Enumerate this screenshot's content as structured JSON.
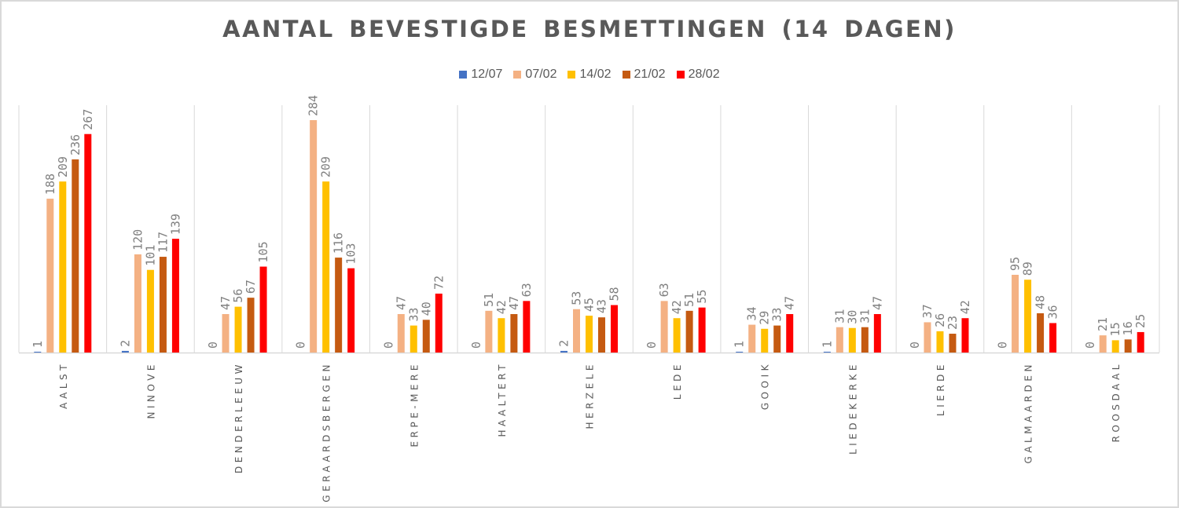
{
  "chart_data": {
    "type": "bar",
    "title": "AANTAL BEVESTIGDE BESMETTINGEN (14 DAGEN)",
    "xlabel": "",
    "ylabel": "",
    "ylim": [
      0,
      300
    ],
    "grid": "vertical category separators",
    "legend_position": "top",
    "categories": [
      "AALST",
      "NINOVE",
      "DENDERLEEUW",
      "GERAARDSBERGEN",
      "ERPE-MERE",
      "HAALTERT",
      "HERZELE",
      "LEDE",
      "GOOIK",
      "LIEDEKERKE",
      "LIERDE",
      "GALMAARDEN",
      "ROOSDAAL"
    ],
    "series": [
      {
        "name": "12/07",
        "color": "#4472c4",
        "values": [
          1,
          2,
          0,
          0,
          0,
          0,
          2,
          0,
          1,
          1,
          0,
          0,
          0
        ]
      },
      {
        "name": "07/02",
        "color": "#f4b183",
        "values": [
          188,
          120,
          47,
          284,
          47,
          51,
          53,
          63,
          34,
          31,
          37,
          95,
          21
        ]
      },
      {
        "name": "14/02",
        "color": "#ffc000",
        "values": [
          209,
          101,
          56,
          209,
          33,
          42,
          45,
          42,
          29,
          30,
          26,
          89,
          15
        ]
      },
      {
        "name": "21/02",
        "color": "#c55a11",
        "values": [
          236,
          117,
          67,
          116,
          40,
          47,
          43,
          51,
          33,
          31,
          23,
          48,
          16
        ]
      },
      {
        "name": "28/02",
        "color": "#ff0000",
        "values": [
          267,
          139,
          105,
          103,
          72,
          63,
          58,
          55,
          47,
          47,
          42,
          36,
          25
        ]
      }
    ],
    "data_labels": "shown, rotated vertical above each bar"
  }
}
